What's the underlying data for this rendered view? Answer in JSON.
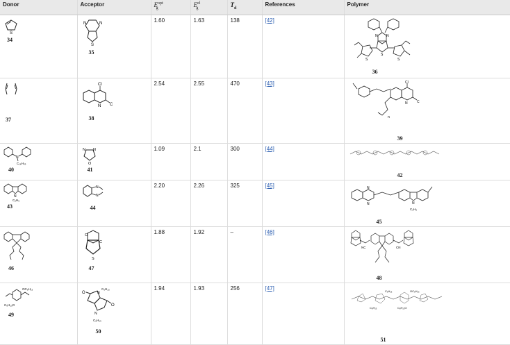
{
  "headers": {
    "donor": "Donor",
    "acceptor": "Acceptor",
    "eg_opt_main": "E",
    "eg_opt_sub": "g",
    "eg_opt_sup": "opt",
    "eg_el_main": "E",
    "eg_el_sub": "g",
    "eg_el_sup": "el",
    "td_main": "T",
    "td_sub": "d",
    "references": "References",
    "polymer": "Polymer"
  },
  "rows": [
    {
      "donor_num": "34",
      "acceptor_num": "35",
      "eg_opt": "1.60",
      "eg_el": "1.63",
      "td": "138",
      "ref": "[42]",
      "polymer_num": "36"
    },
    {
      "donor_num": "37",
      "acceptor_num": "38",
      "eg_opt": "2.54",
      "eg_el": "2.55",
      "td": "470",
      "ref": "[43]",
      "polymer_num": "39"
    },
    {
      "donor_num": "40",
      "acceptor_num": "41",
      "eg_opt": "1.09",
      "eg_el": "2.1",
      "td": "300",
      "ref": "[44]",
      "polymer_num": "42"
    },
    {
      "donor_num": "43",
      "acceptor_num": "44",
      "eg_opt": "2.20",
      "eg_el": "2.26",
      "td": "325",
      "ref": "[45]",
      "polymer_num": "45"
    },
    {
      "donor_num": "46",
      "acceptor_num": "47",
      "eg_opt": "1.88",
      "eg_el": "1.92",
      "td": "–",
      "ref": "[46]",
      "polymer_num": "48"
    },
    {
      "donor_num": "49",
      "acceptor_num": "50",
      "eg_opt": "1.94",
      "eg_el": "1.93",
      "td": "256",
      "ref": "[47]",
      "polymer_num": "51"
    }
  ],
  "structure_labels": {
    "s": "S",
    "n": "N",
    "o": "O",
    "cl": "Cl",
    "c": "C",
    "nsub": "n",
    "c16h33": "C₁₆H₃₃",
    "c2h5": "C₂H₅",
    "c6h13": "C₆H₁₃",
    "oc6h13": "OC₆H₁₃",
    "c6h13o": "C₆H₁₃O",
    "nc": "NC",
    "cn": "CN"
  }
}
